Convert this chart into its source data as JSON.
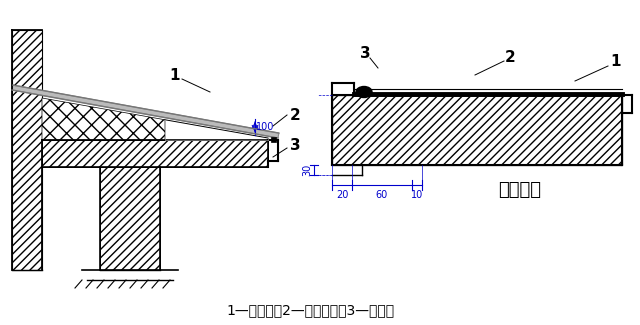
{
  "bg_color": "#ffffff",
  "blue_color": "#0000cc",
  "title_text": "收口大样",
  "legend_text": "1—防水层；2—密封材料；3—水泥钉",
  "dim_100": "100",
  "dim_30": "30",
  "dim_20": "20",
  "dim_60": "60",
  "dim_10": "10"
}
